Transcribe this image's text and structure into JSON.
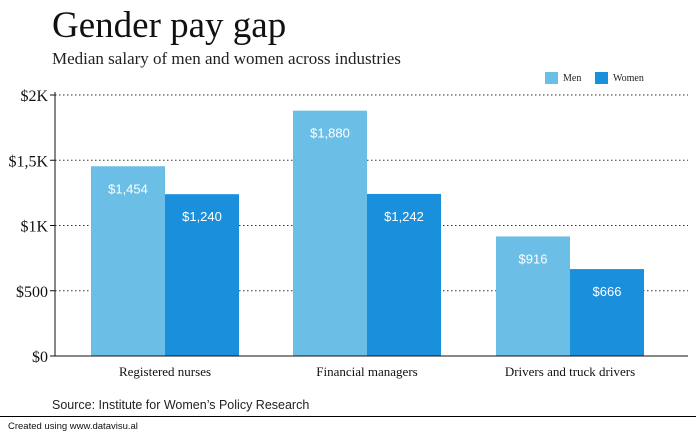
{
  "chart_data": {
    "type": "bar",
    "title": "Gender pay gap",
    "subtitle": "Median salary of men and women across industries",
    "categories": [
      "Registered nurses",
      "Financial managers",
      "Drivers and truck drivers"
    ],
    "series": [
      {
        "name": "Men",
        "values": [
          1454,
          1880,
          916
        ],
        "labels": [
          "$1,454",
          "$1,880",
          "$916"
        ],
        "color": "#6bbfe6"
      },
      {
        "name": "Women",
        "values": [
          1240,
          1242,
          666
        ],
        "labels": [
          "$1,240",
          "$1,242",
          "$666"
        ],
        "color": "#1a8fdc"
      }
    ],
    "yticks": [
      {
        "value": 0,
        "label": "$0"
      },
      {
        "value": 500,
        "label": "$500"
      },
      {
        "value": 1000,
        "label": "$1K"
      },
      {
        "value": 1500,
        "label": "$1,5K"
      },
      {
        "value": 2000,
        "label": "$2K"
      }
    ],
    "ylim": [
      0,
      2000
    ],
    "xlabel": "",
    "ylabel": "",
    "grid": true,
    "legend_position": "top-right"
  },
  "source": "Source: Institute for Women’s Policy Research",
  "footer": "Created using www.datavisu.al"
}
